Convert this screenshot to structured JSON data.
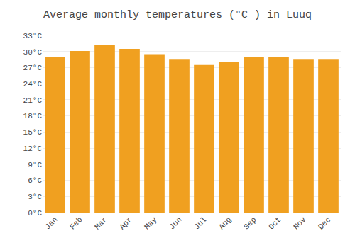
{
  "chart_data": {
    "type": "bar",
    "title": "Average monthly temperatures (°C ) in Luuq",
    "categories": [
      "Jan",
      "Feb",
      "Mar",
      "Apr",
      "May",
      "Jun",
      "Jul",
      "Aug",
      "Sep",
      "Oct",
      "Nov",
      "Dec"
    ],
    "values": [
      29.0,
      30.1,
      31.2,
      30.5,
      29.5,
      28.6,
      27.5,
      28.0,
      29.0,
      29.0,
      28.6,
      28.6
    ],
    "color": "#F0A020",
    "ylim": [
      0,
      33
    ],
    "yticks": [
      {
        "value": 0,
        "label": "0°C"
      },
      {
        "value": 3,
        "label": "3°C"
      },
      {
        "value": 6,
        "label": "6°C"
      },
      {
        "value": 9,
        "label": "9°C"
      },
      {
        "value": 12,
        "label": "12°C"
      },
      {
        "value": 15,
        "label": "15°C"
      },
      {
        "value": 18,
        "label": "18°C"
      },
      {
        "value": 21,
        "label": "21°C"
      },
      {
        "value": 24,
        "label": "24°C"
      },
      {
        "value": 27,
        "label": "27°C"
      },
      {
        "value": 30,
        "label": "30°C"
      },
      {
        "value": 33,
        "label": "33°C"
      }
    ],
    "grid": true
  }
}
